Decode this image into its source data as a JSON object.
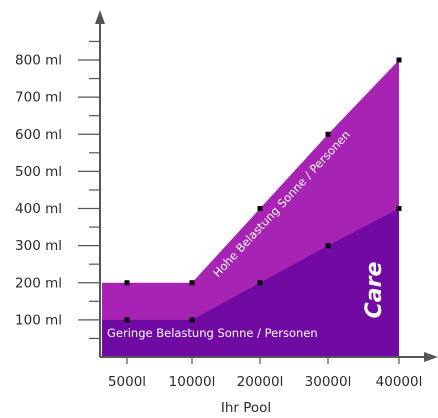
{
  "chart_data": {
    "type": "area",
    "x": [
      "5000l",
      "10000l",
      "20000l",
      "30000l",
      "40000l"
    ],
    "xlabel": "Ihr Pool",
    "ylabel": "",
    "ylim": [
      0,
      900
    ],
    "y_ticks": [
      "100 ml",
      "200 ml",
      "300 ml",
      "400 ml",
      "500 ml",
      "600 ml",
      "700 ml",
      "800 ml"
    ],
    "y_tick_values": [
      100,
      200,
      300,
      400,
      500,
      600,
      700,
      800
    ],
    "series": [
      {
        "name": "Hohe Belastung Sonne / Personen",
        "values": [
          200,
          200,
          400,
          600,
          800
        ]
      },
      {
        "name": "Geringe Belastung Sonne / Personen",
        "values": [
          100,
          100,
          200,
          300,
          400
        ]
      }
    ],
    "annotation": "Care",
    "grid": false,
    "colors": {
      "high": "#a623b4",
      "low": "#700aa3",
      "marker": "#000000",
      "axis": "#555555"
    }
  }
}
